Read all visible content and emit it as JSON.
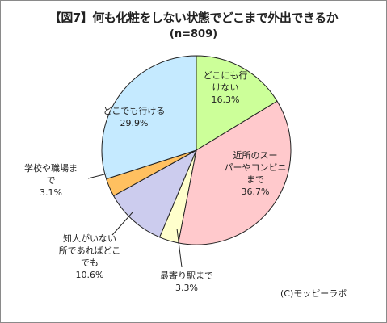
{
  "chart_data": {
    "type": "pie",
    "title": "【図7】何も化粧をしない状態でどこまで外出できるか",
    "subtitle": "(n=809)",
    "credit": "(C)モッピーラボ",
    "unit": "%",
    "start_angle_deg": 0,
    "direction": "clockwise",
    "slices": [
      {
        "lines": [
          "どこにも行",
          "けない"
        ],
        "value": 16.3,
        "label": "16.3%",
        "color": "#ccff99"
      },
      {
        "lines": [
          "近所のスー",
          "パーやコンビニ",
          "まで"
        ],
        "value": 36.7,
        "label": "36.7%",
        "color": "#ffc9cc"
      },
      {
        "lines": [
          "最寄り駅まで"
        ],
        "value": 3.3,
        "label": "3.3%",
        "color": "#ffffcc"
      },
      {
        "lines": [
          "知人がいない",
          "所であればどこ",
          "でも"
        ],
        "value": 10.6,
        "label": "10.6%",
        "color": "#ccccee"
      },
      {
        "lines": [
          "学校や職場ま",
          "で"
        ],
        "value": 3.1,
        "label": "3.1%",
        "color": "#ffc060"
      },
      {
        "lines": [
          "どこでも行ける"
        ],
        "value": 29.9,
        "label": "29.9%",
        "color": "#c5eaff"
      }
    ]
  }
}
